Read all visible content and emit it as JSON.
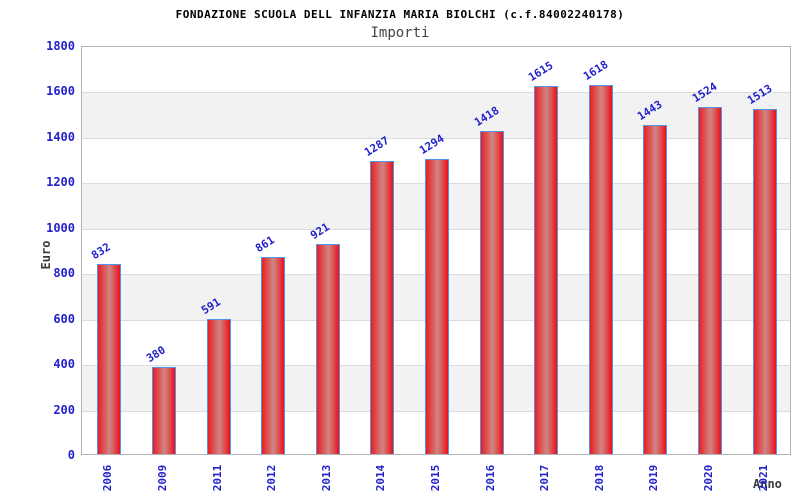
{
  "header": {
    "title": "FONDAZIONE SCUOLA DELL INFANZIA MARIA BIOLCHI (c.f.84002240178)",
    "subtitle": "Importi"
  },
  "chart_data": {
    "type": "bar",
    "title": "FONDAZIONE SCUOLA DELL INFANZIA MARIA BIOLCHI (c.f.84002240178)",
    "subtitle": "Importi",
    "xlabel": "Anno",
    "ylabel": "Euro",
    "categories": [
      "2006",
      "2009",
      "2011",
      "2012",
      "2013",
      "2014",
      "2015",
      "2016",
      "2017",
      "2018",
      "2019",
      "2020",
      "2021"
    ],
    "values": [
      832,
      380,
      591,
      861,
      921,
      1287,
      1294,
      1418,
      1615,
      1618,
      1443,
      1524,
      1513
    ],
    "ylim": [
      0,
      1800
    ],
    "y_ticks": [
      0,
      200,
      400,
      600,
      800,
      1000,
      1200,
      1400,
      1600,
      1800
    ],
    "grid": "horizontal alternating bands every 200",
    "legend": null,
    "colors": {
      "bar_fill_edge": "#ee1b24",
      "bar_fill_center": "#d08585",
      "bar_border": "#4e97e8",
      "tick_label": "#2222cc",
      "value_label": "#2222cc",
      "band_gray": "#f2f2f2",
      "axis_label": "#3a3a3a",
      "title": "#000000",
      "subtitle": "#444444"
    }
  }
}
